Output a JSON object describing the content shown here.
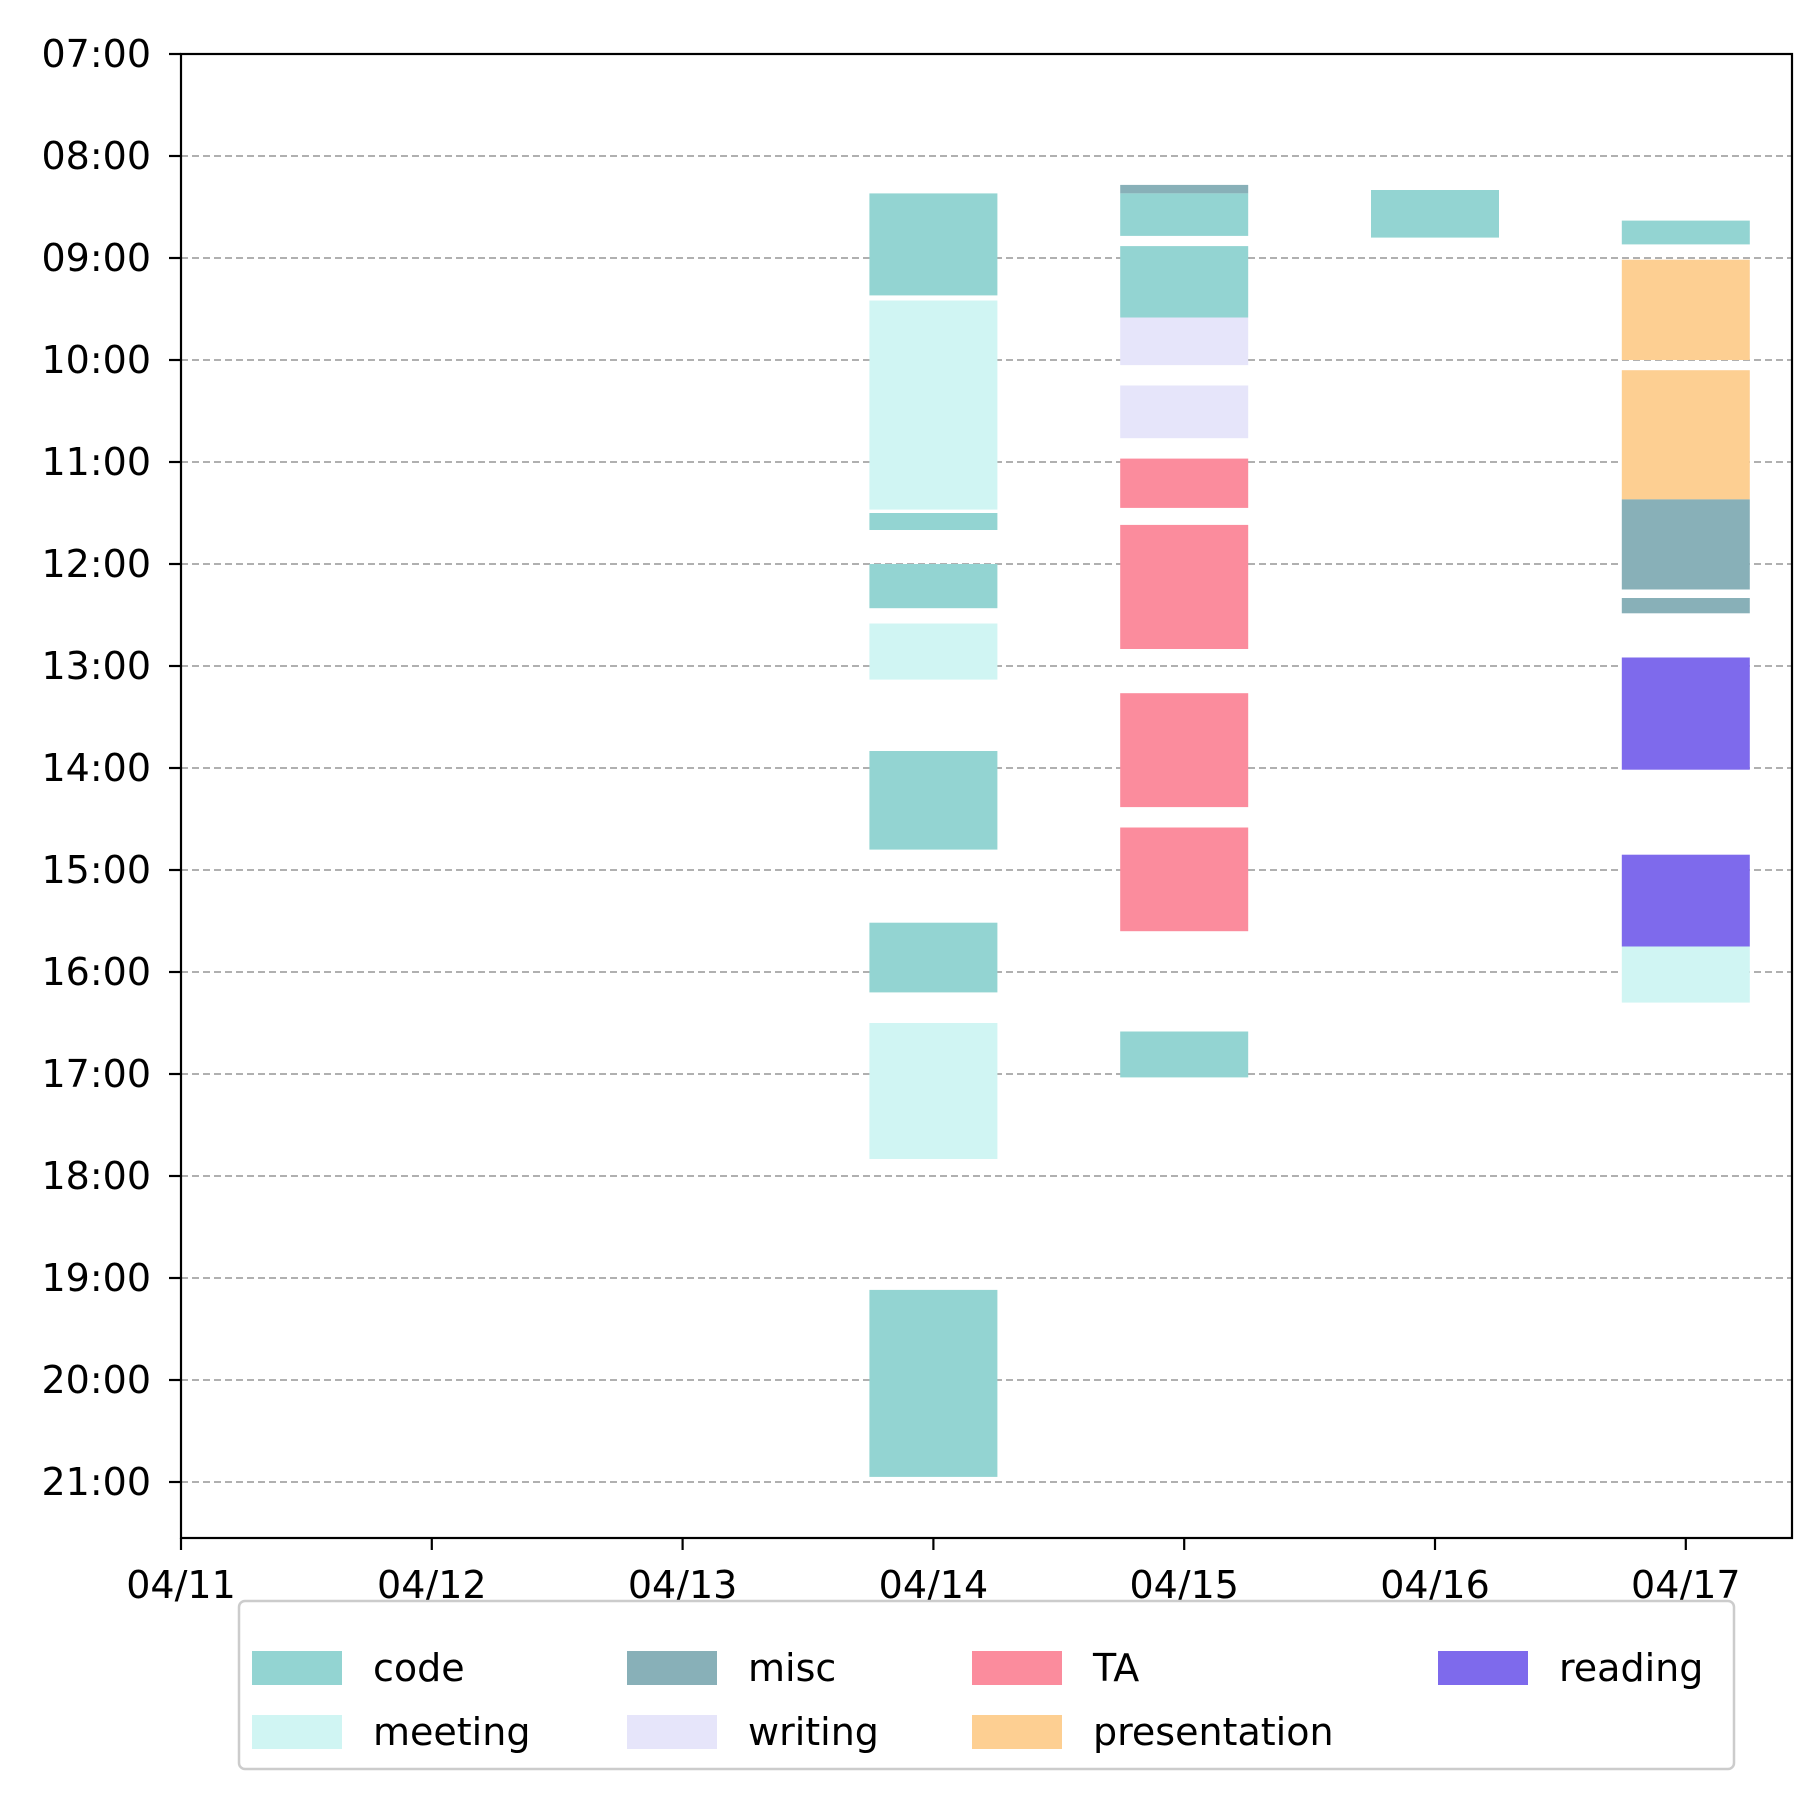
{
  "chart_data": {
    "type": "bar",
    "title": "",
    "xlabel": "",
    "ylabel": "",
    "x_categories": [
      "04/11",
      "04/12",
      "04/13",
      "04/14",
      "04/15",
      "04/16",
      "04/17"
    ],
    "y_ticks": [
      "07:00",
      "08:00",
      "09:00",
      "10:00",
      "11:00",
      "12:00",
      "13:00",
      "14:00",
      "15:00",
      "16:00",
      "17:00",
      "18:00",
      "19:00",
      "20:00",
      "21:00"
    ],
    "ylim": [
      "21:33",
      "07:00"
    ],
    "y_inverted": true,
    "grid": "horizontal dashed",
    "legend_position": "bottom",
    "categories": [
      {
        "name": "code",
        "color": "#93d4d2"
      },
      {
        "name": "meeting",
        "color": "#d0f5f3"
      },
      {
        "name": "misc",
        "color": "#88b0b8"
      },
      {
        "name": "writing",
        "color": "#e6e5fa"
      },
      {
        "name": "TA",
        "color": "#fb8c9d"
      },
      {
        "name": "presentation",
        "color": "#fdcf92"
      },
      {
        "name": "reading",
        "color": "#7e6aec"
      }
    ],
    "events": [
      {
        "date": "04/14",
        "start": "08:22",
        "end": "09:22",
        "category": "code"
      },
      {
        "date": "04/14",
        "start": "09:25",
        "end": "11:28",
        "category": "meeting"
      },
      {
        "date": "04/14",
        "start": "11:30",
        "end": "11:40",
        "category": "code"
      },
      {
        "date": "04/14",
        "start": "12:00",
        "end": "12:26",
        "category": "code"
      },
      {
        "date": "04/14",
        "start": "12:35",
        "end": "13:08",
        "category": "meeting"
      },
      {
        "date": "04/14",
        "start": "13:50",
        "end": "14:48",
        "category": "code"
      },
      {
        "date": "04/14",
        "start": "15:31",
        "end": "16:12",
        "category": "code"
      },
      {
        "date": "04/14",
        "start": "16:30",
        "end": "17:50",
        "category": "meeting"
      },
      {
        "date": "04/14",
        "start": "19:07",
        "end": "20:57",
        "category": "code"
      },
      {
        "date": "04/15",
        "start": "08:17",
        "end": "08:22",
        "category": "misc"
      },
      {
        "date": "04/15",
        "start": "08:22",
        "end": "08:47",
        "category": "code"
      },
      {
        "date": "04/15",
        "start": "08:53",
        "end": "09:35",
        "category": "code"
      },
      {
        "date": "04/15",
        "start": "09:35",
        "end": "10:03",
        "category": "writing"
      },
      {
        "date": "04/15",
        "start": "10:15",
        "end": "10:46",
        "category": "writing"
      },
      {
        "date": "04/15",
        "start": "10:58",
        "end": "11:27",
        "category": "TA"
      },
      {
        "date": "04/15",
        "start": "11:37",
        "end": "12:50",
        "category": "TA"
      },
      {
        "date": "04/15",
        "start": "13:16",
        "end": "14:23",
        "category": "TA"
      },
      {
        "date": "04/15",
        "start": "14:35",
        "end": "15:36",
        "category": "TA"
      },
      {
        "date": "04/15",
        "start": "16:35",
        "end": "17:02",
        "category": "code"
      },
      {
        "date": "04/16",
        "start": "08:20",
        "end": "08:48",
        "category": "code"
      },
      {
        "date": "04/17",
        "start": "08:38",
        "end": "08:52",
        "category": "code"
      },
      {
        "date": "04/17",
        "start": "09:01",
        "end": "10:00",
        "category": "presentation"
      },
      {
        "date": "04/17",
        "start": "10:06",
        "end": "11:22",
        "category": "presentation"
      },
      {
        "date": "04/17",
        "start": "11:22",
        "end": "12:15",
        "category": "misc"
      },
      {
        "date": "04/17",
        "start": "12:20",
        "end": "12:29",
        "category": "misc"
      },
      {
        "date": "04/17",
        "start": "12:55",
        "end": "14:01",
        "category": "reading"
      },
      {
        "date": "04/17",
        "start": "14:51",
        "end": "15:45",
        "category": "reading"
      },
      {
        "date": "04/17",
        "start": "15:45",
        "end": "16:18",
        "category": "meeting"
      }
    ]
  }
}
